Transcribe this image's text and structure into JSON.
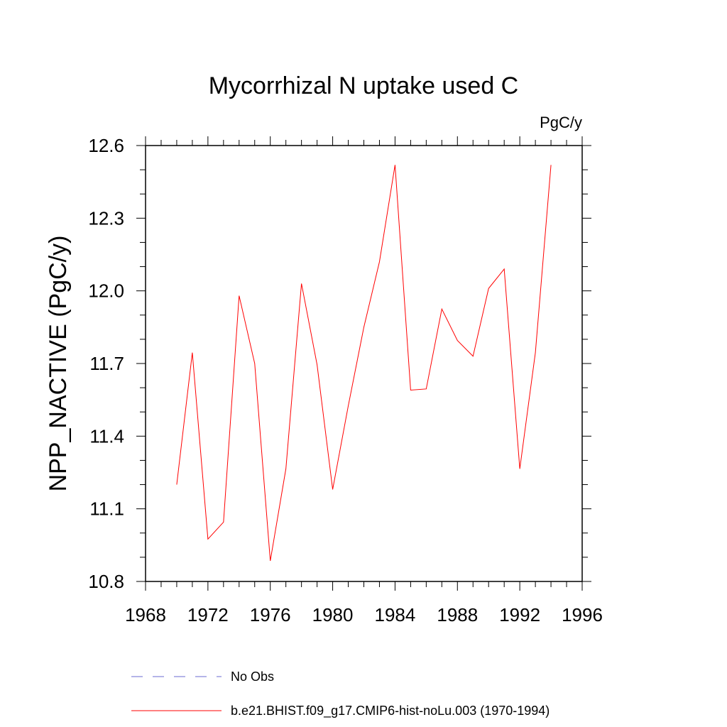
{
  "chart_data": {
    "type": "line",
    "title": "Mycorrhizal N uptake used C",
    "units": "PgC/y",
    "ylabel": "NPP_NACTIVE  (PgC/y)",
    "xlabel": "",
    "xlim": [
      1968,
      1996
    ],
    "ylim": [
      10.8,
      12.6
    ],
    "x_ticks": [
      "1968",
      "1972",
      "1976",
      "1980",
      "1984",
      "1988",
      "1992",
      "1996"
    ],
    "y_ticks": [
      "10.8",
      "11.1",
      "11.4",
      "11.7",
      "12.0",
      "12.3",
      "12.6"
    ],
    "x": [
      1970,
      1971,
      1972,
      1973,
      1974,
      1975,
      1976,
      1977,
      1978,
      1979,
      1980,
      1981,
      1982,
      1983,
      1984,
      1985,
      1986,
      1987,
      1988,
      1989,
      1990,
      1991,
      1992,
      1993,
      1994
    ],
    "series": [
      {
        "name": "b.e21.BHIST.f09_g17.CMIP6-hist-noLu.003 (1970-1994)",
        "color": "#ff0000",
        "values": [
          11.2,
          11.745,
          10.975,
          11.045,
          11.98,
          11.7,
          10.885,
          11.265,
          12.03,
          11.695,
          11.18,
          11.525,
          11.85,
          12.12,
          12.52,
          11.59,
          11.595,
          11.925,
          11.795,
          11.73,
          12.01,
          12.09,
          11.265,
          11.745,
          12.52
        ]
      }
    ],
    "legend": [
      {
        "label": "No Obs",
        "color": "#6a6ad0",
        "style": "dashed"
      },
      {
        "label": "b.e21.BHIST.f09_g17.CMIP6-hist-noLu.003 (1970-1994)",
        "color": "#ff0000",
        "style": "solid"
      }
    ],
    "grid": false,
    "legend_position": "bottom"
  }
}
